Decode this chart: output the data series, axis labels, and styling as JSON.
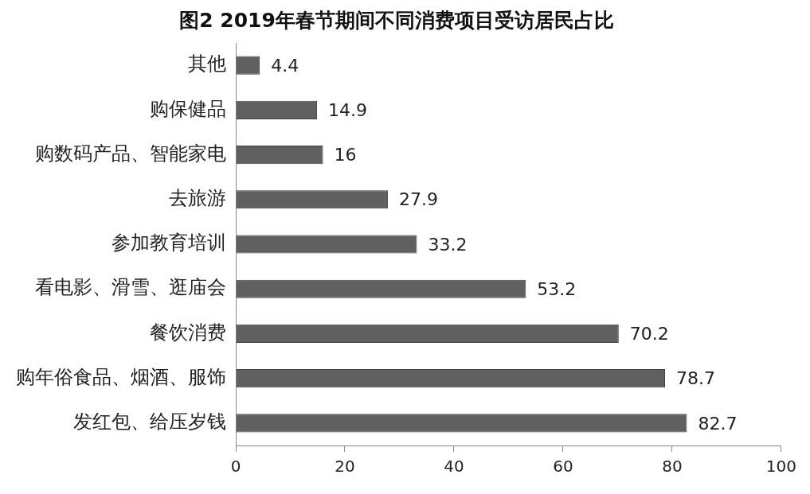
{
  "chart_data": {
    "type": "bar",
    "orientation": "horizontal",
    "title": "图2 2019年春节期间不同消费项目受访居民占比",
    "categories": [
      "其他",
      "购保健品",
      "购数码产品、智能家电",
      "去旅游",
      "参加教育培训",
      "看电影、滑雪、逛庙会",
      "餐饮消费",
      "购年俗食品、烟酒、服饰",
      "发红包、给压岁钱"
    ],
    "values": [
      4.4,
      14.9,
      16,
      27.9,
      33.2,
      53.2,
      70.2,
      78.7,
      82.7
    ],
    "color": "#606060",
    "xlim": [
      0,
      100
    ],
    "xticks": [
      0,
      20,
      40,
      60,
      80,
      100
    ],
    "grid": false,
    "legend": false,
    "data_labels": true
  }
}
